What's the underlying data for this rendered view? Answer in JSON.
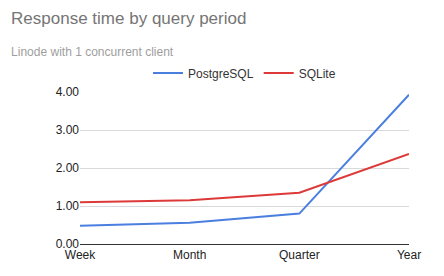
{
  "chart_data": {
    "type": "line",
    "title": "Response time by query period",
    "subtitle": "Linode with 1 concurrent client",
    "categories": [
      "Week",
      "Month",
      "Quarter",
      "Year"
    ],
    "series": [
      {
        "name": "PostgreSQL",
        "color": "#4a7fe0",
        "values": [
          0.48,
          0.56,
          0.8,
          3.93
        ]
      },
      {
        "name": "SQLite",
        "color": "#dc3a38",
        "values": [
          1.1,
          1.15,
          1.35,
          2.37
        ]
      }
    ],
    "ylim": [
      0,
      4
    ],
    "yticks": [
      {
        "value": 0,
        "label": "0.00"
      },
      {
        "value": 1,
        "label": "1.00"
      },
      {
        "value": 2,
        "label": "2.00"
      },
      {
        "value": 3,
        "label": "3.00"
      },
      {
        "value": 4,
        "label": "4.00"
      }
    ],
    "grid": true,
    "legend": "top"
  }
}
